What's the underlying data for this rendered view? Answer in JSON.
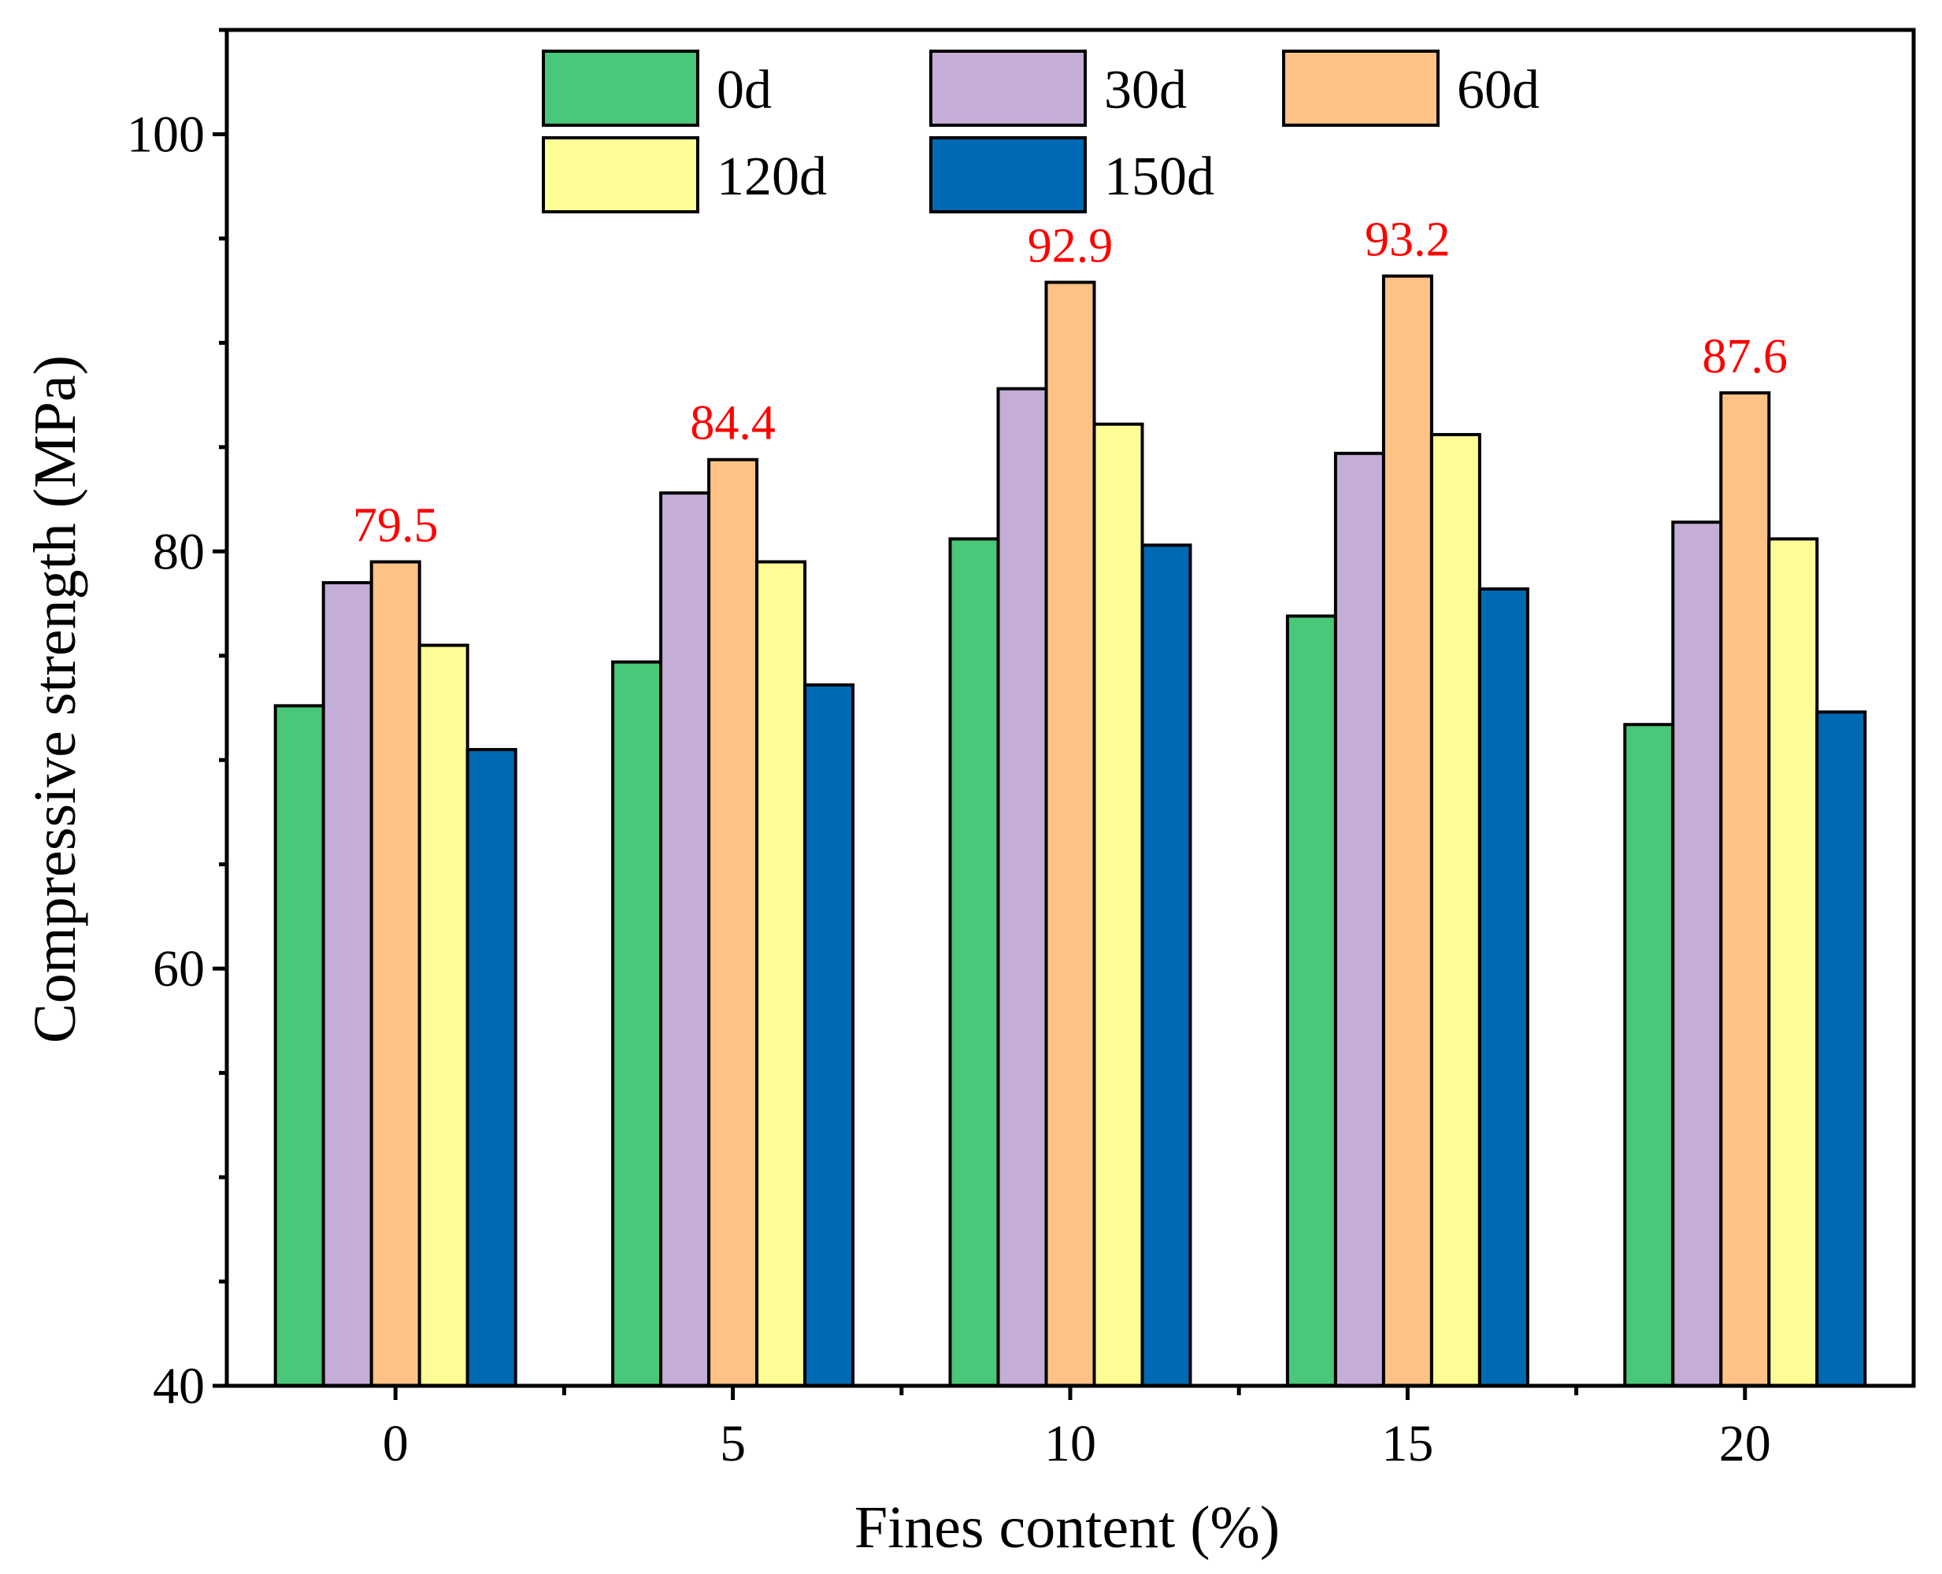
{
  "chart_data": {
    "type": "bar",
    "title": "",
    "xlabel": "Fines content (%)",
    "ylabel": "Compressive strength (MPa)",
    "ylim": [
      40,
      105
    ],
    "yticks": [
      40,
      60,
      80,
      100
    ],
    "categories": [
      "0",
      "5",
      "10",
      "15",
      "20"
    ],
    "series": [
      {
        "name": "0d",
        "color": "#48c878",
        "values": [
          72.6,
          74.7,
          80.6,
          76.9,
          71.7
        ]
      },
      {
        "name": "30d",
        "color": "#c4aed8",
        "values": [
          78.5,
          82.8,
          87.8,
          84.7,
          81.4
        ]
      },
      {
        "name": "60d",
        "color": "#fec286",
        "values": [
          79.5,
          84.4,
          92.9,
          93.2,
          87.6
        ]
      },
      {
        "name": "120d",
        "color": "#fefe96",
        "values": [
          75.5,
          79.5,
          86.1,
          85.6,
          80.6
        ]
      },
      {
        "name": "150d",
        "color": "#0069b4",
        "values": [
          70.5,
          73.6,
          80.3,
          78.2,
          72.3
        ]
      }
    ],
    "annotations": {
      "series": "60d",
      "color": "#ff0000",
      "labels": [
        "79.5",
        "84.4",
        "92.9",
        "93.2",
        "87.6"
      ]
    },
    "legend_position": "top-center",
    "grid": false
  }
}
